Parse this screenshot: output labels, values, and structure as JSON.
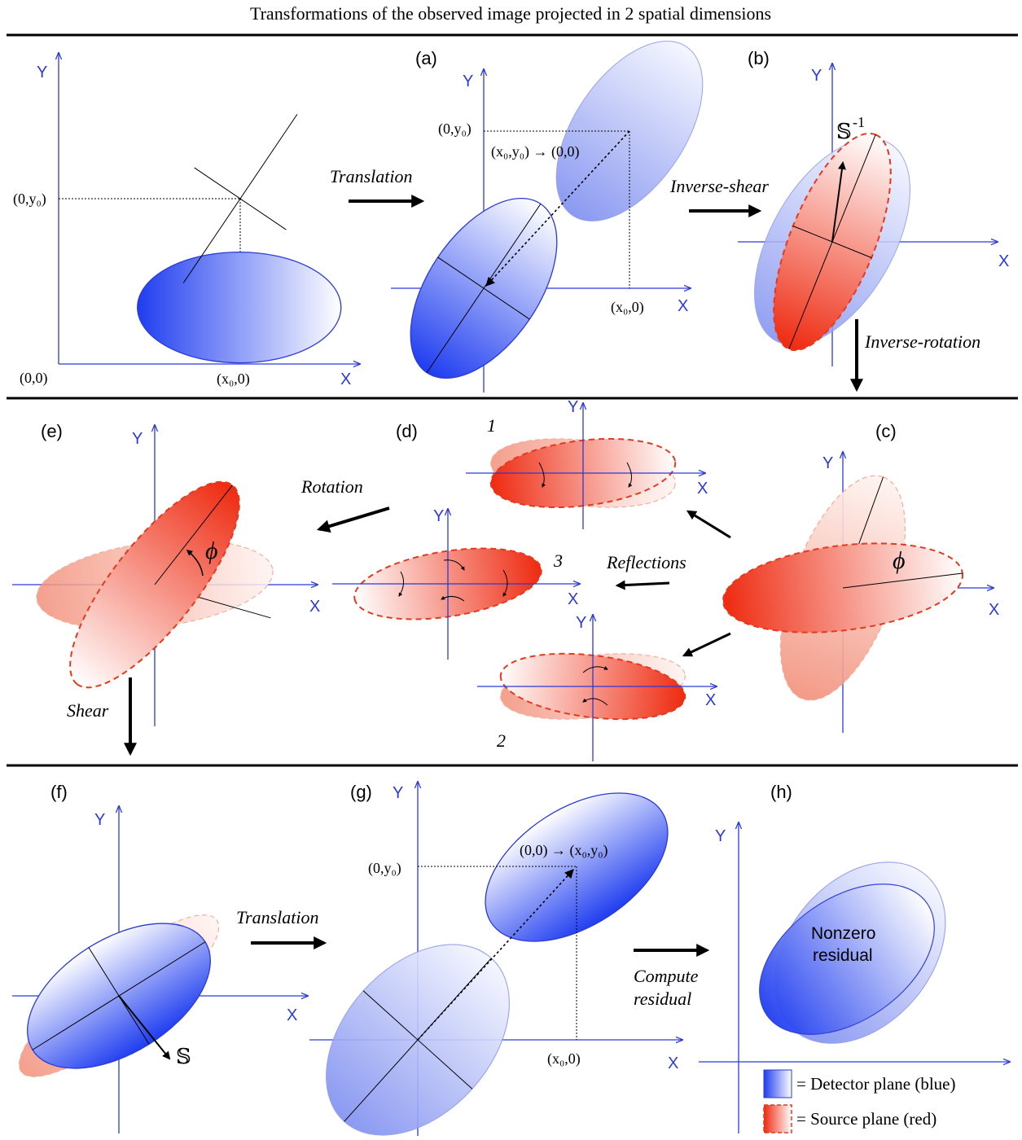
{
  "title": "Transformations of the observed image projected in 2 spatial dimensions",
  "panels": {
    "a": "(a)",
    "b": "(b)",
    "c": "(c)",
    "d": "(d)",
    "e": "(e)",
    "f": "(f)",
    "g": "(g)",
    "h": "(h)"
  },
  "axes": {
    "x": "X",
    "y": "Y"
  },
  "coords": {
    "origin": "(0,0)",
    "x0": "(x₀,0)",
    "y0": "(0,y₀)",
    "to_origin": "(x₀,y₀) → (0,0)",
    "from_origin": "(0,0) → (x₀,y₀)"
  },
  "operations": {
    "translation": "Translation",
    "inverse_shear": "Inverse-shear",
    "inverse_rotation": "Inverse-rotation",
    "reflections": "Reflections",
    "rotation": "Rotation",
    "shear": "Shear",
    "compute": "Compute",
    "residual": "residual"
  },
  "symbols": {
    "shear_inverse": "𝕊",
    "shear_inverse_sup": "-1",
    "shear": "𝕊",
    "phi": "ϕ"
  },
  "reflection_labels": {
    "r1": "1",
    "r2": "2",
    "r3": "3"
  },
  "residual_label": {
    "line1": "Nonzero",
    "line2": "residual"
  },
  "legend": {
    "detector": "= Detector plane (blue)",
    "source": "= Source plane (red)"
  },
  "colors": {
    "detector_blue": "#1f3df0",
    "source_red": "#ee2a10",
    "axis_blue": "#2b3ad6"
  }
}
